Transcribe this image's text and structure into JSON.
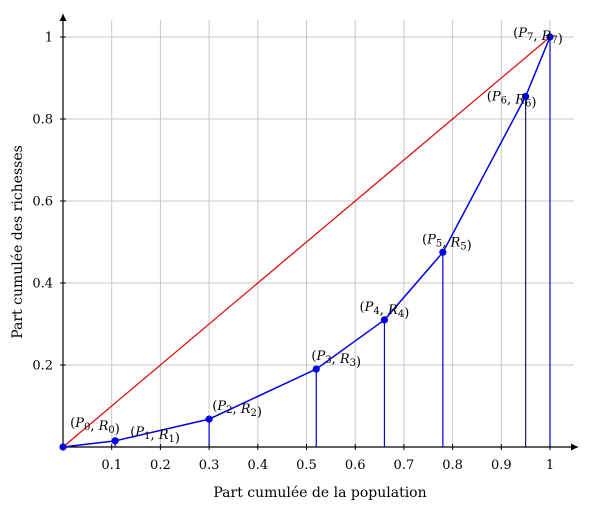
{
  "chart_data": {
    "type": "line",
    "title": "",
    "xlabel": "Part cumulée de la population",
    "ylabel": "Part cumulée des richesses",
    "xlim": [
      0,
      1.04
    ],
    "ylim": [
      0,
      1.04
    ],
    "grid": true,
    "x_ticks": [
      "0.1",
      "0.2",
      "0.3",
      "0.4",
      "0.5",
      "0.6",
      "0.7",
      "0.8",
      "0.9",
      "1"
    ],
    "x_tick_values": [
      0.1,
      0.2,
      0.3,
      0.4,
      0.5,
      0.6,
      0.7,
      0.8,
      0.9,
      1.0
    ],
    "y_ticks": [
      "0.2",
      "0.4",
      "0.6",
      "0.8",
      "1"
    ],
    "y_tick_values": [
      0.2,
      0.4,
      0.6,
      0.8,
      1.0
    ],
    "equality_line": {
      "x": [
        0,
        1
      ],
      "y": [
        0,
        1
      ],
      "color": "#e00000"
    },
    "lorenz_curve": {
      "color": "#0000e6",
      "points": [
        {
          "label_main": "P",
          "label_sub": "0",
          "label_main2": "R",
          "label_sub2": "0",
          "x": 0.0,
          "y": 0.0
        },
        {
          "label_main": "P",
          "label_sub": "1",
          "label_main2": "R",
          "label_sub2": "1",
          "x": 0.107,
          "y": 0.015
        },
        {
          "label_main": "P",
          "label_sub": "2",
          "label_main2": "R",
          "label_sub2": "2",
          "x": 0.3,
          "y": 0.068
        },
        {
          "label_main": "P",
          "label_sub": "3",
          "label_main2": "R",
          "label_sub2": "3",
          "x": 0.52,
          "y": 0.19
        },
        {
          "label_main": "P",
          "label_sub": "4",
          "label_main2": "R",
          "label_sub2": "4",
          "x": 0.66,
          "y": 0.31
        },
        {
          "label_main": "P",
          "label_sub": "5",
          "label_main2": "R",
          "label_sub2": "5",
          "x": 0.78,
          "y": 0.475
        },
        {
          "label_main": "P",
          "label_sub": "6",
          "label_main2": "R",
          "label_sub2": "6",
          "x": 0.95,
          "y": 0.855
        },
        {
          "label_main": "P",
          "label_sub": "7",
          "label_main2": "R",
          "label_sub2": "7",
          "x": 1.0,
          "y": 1.0
        }
      ]
    }
  }
}
